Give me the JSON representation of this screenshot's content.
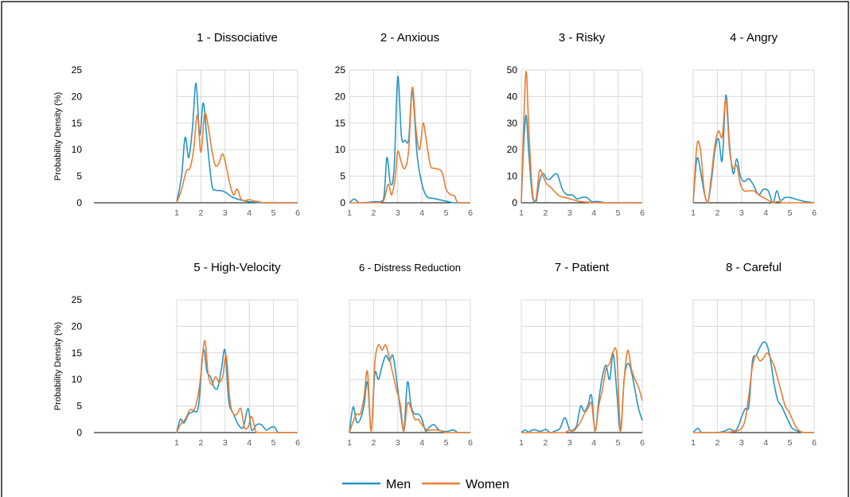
{
  "chart_data": {
    "type": "line",
    "x_ticks": [
      "1",
      "2",
      "3",
      "4",
      "5",
      "6"
    ],
    "xlim": [
      1,
      6
    ],
    "ylabel": "Probability Density (%)",
    "legend": {
      "placement": "bottom-center",
      "entries": [
        {
          "name": "Men",
          "color": "#2596c6"
        },
        {
          "name": "Women",
          "color": "#ed7d31"
        }
      ]
    },
    "rows": [
      {
        "ylim": [
          0,
          25
        ],
        "y_ticks": [
          "0",
          "5",
          "10",
          "15",
          "20",
          "25"
        ],
        "show_ylabel": true
      },
      {
        "ylim": [
          0,
          25
        ],
        "y_ticks": [
          "0",
          "5",
          "10",
          "15",
          "20",
          "25"
        ],
        "show_ylabel": true
      }
    ],
    "panels": [
      {
        "title": "1 - Dissociative",
        "ylim": [
          0,
          25
        ],
        "y_ticks": [
          "0",
          "5",
          "10",
          "15",
          "20",
          "25"
        ],
        "series": [
          {
            "name": "Men",
            "x": [
              1,
              1.2,
              1.35,
              1.5,
              1.65,
              1.8,
              1.95,
              2.1,
              2.25,
              2.45,
              2.6,
              2.8,
              3,
              3.25,
              3.5,
              3.75,
              4,
              4.25,
              4.5,
              5,
              6
            ],
            "y": [
              0,
              5,
              12.3,
              8.5,
              14,
              22.5,
              12.8,
              18.8,
              12,
              3.5,
              2.4,
              2.3,
              2,
              1.2,
              0.7,
              0.4,
              0.2,
              0.1,
              0,
              0,
              0
            ]
          },
          {
            "name": "Women",
            "x": [
              1,
              1.2,
              1.4,
              1.55,
              1.7,
              1.85,
              2,
              2.15,
              2.3,
              2.45,
              2.6,
              2.75,
              2.9,
              3.05,
              3.2,
              3.35,
              3.5,
              3.65,
              3.8,
              4,
              4.2,
              4.4,
              4.6,
              5,
              6
            ],
            "y": [
              0,
              2.5,
              6,
              6.5,
              10,
              16.5,
              9.5,
              16.7,
              14.5,
              10,
              7,
              7.5,
              9.2,
              6.8,
              3.5,
              1.5,
              2.6,
              0.8,
              0.4,
              0.6,
              0.3,
              0.2,
              0,
              0,
              0
            ]
          }
        ]
      },
      {
        "title": "2 - Anxious",
        "ylim": [
          0,
          25
        ],
        "y_ticks": [
          "0",
          "5",
          "10",
          "15",
          "20",
          "25"
        ],
        "series": [
          {
            "name": "Men",
            "x": [
              1,
              1.2,
              1.4,
              1.6,
              2,
              2.4,
              2.55,
              2.7,
              2.85,
              3,
              3.15,
              3.3,
              3.45,
              3.6,
              3.8,
              4,
              4.2,
              4.5,
              5,
              5.3,
              5.5,
              6
            ],
            "y": [
              0,
              0.7,
              0,
              0,
              0.2,
              0.5,
              8.5,
              3.5,
              6.5,
              23.7,
              12.5,
              11.8,
              12,
              21.2,
              9,
              3.5,
              1.2,
              0.8,
              0.3,
              0,
              0,
              0
            ]
          },
          {
            "name": "Women",
            "x": [
              1,
              2,
              2.4,
              2.6,
              2.75,
              2.9,
              3,
              3.15,
              3.3,
              3.45,
              3.6,
              3.75,
              3.9,
              4.05,
              4.2,
              4.35,
              4.5,
              4.7,
              4.85,
              5,
              5.2,
              5.35,
              5.5,
              6
            ],
            "y": [
              0,
              0,
              0.3,
              3.5,
              1.5,
              5,
              9.7,
              7.5,
              6.5,
              10,
              21.7,
              14,
              10,
              15,
              11,
              7,
              6.5,
              6.3,
              5.5,
              2.5,
              1.5,
              1.3,
              0,
              0
            ]
          }
        ]
      },
      {
        "title": "3 - Risky",
        "ylim": [
          0,
          50
        ],
        "y_ticks": [
          "0",
          "10",
          "20",
          "30",
          "40",
          "50"
        ],
        "series": [
          {
            "name": "Men",
            "x": [
              1,
              1.1,
              1.2,
              1.3,
              1.45,
              1.6,
              1.75,
              1.9,
              2.05,
              2.2,
              2.35,
              2.5,
              2.7,
              2.9,
              3.1,
              3.3,
              3.5,
              3.7,
              3.9,
              4.1,
              4.3,
              4.5,
              5,
              6
            ],
            "y": [
              0,
              22,
              33,
              20,
              3,
              0,
              8,
              11,
              9,
              9,
              10.5,
              10.5,
              5,
              3,
              3,
              1.5,
              2,
              2,
              0.5,
              0.5,
              0.3,
              0,
              0,
              0
            ]
          },
          {
            "name": "Women",
            "x": [
              1,
              1.1,
              1.2,
              1.3,
              1.45,
              1.6,
              1.75,
              1.9,
              2.05,
              2.2,
              2.4,
              2.6,
              2.8,
              3,
              3.2,
              3.4,
              3.6,
              3.8,
              4,
              5,
              6
            ],
            "y": [
              0,
              30,
              49.5,
              30,
              5,
              1,
              12,
              10,
              7,
              6,
              4,
              2.5,
              2,
              1.5,
              1,
              0.5,
              0.3,
              0.2,
              0,
              0,
              0
            ]
          }
        ]
      },
      {
        "title": "4 - Angry",
        "ylim": [
          0,
          50
        ],
        "y_ticks": [],
        "series": [
          {
            "name": "Men",
            "x": [
              1,
              1.15,
              1.3,
              1.45,
              1.6,
              1.75,
              1.9,
              2.05,
              2.2,
              2.35,
              2.5,
              2.65,
              2.8,
              2.95,
              3.1,
              3.3,
              3.5,
              3.7,
              3.9,
              4.1,
              4.3,
              4.45,
              4.6,
              4.8,
              5,
              5.3,
              5.6,
              6
            ],
            "y": [
              0,
              16.5,
              12,
              4,
              0,
              8,
              20,
              24,
              16,
              40.5,
              22,
              11,
              16.5,
              10,
              8,
              9,
              6.5,
              3,
              5,
              4.5,
              0,
              4.5,
              1,
              2,
              2,
              1.2,
              0.5,
              0
            ]
          },
          {
            "name": "Women",
            "x": [
              1,
              1.15,
              1.3,
              1.45,
              1.6,
              1.75,
              1.9,
              2.05,
              2.2,
              2.35,
              2.5,
              2.65,
              2.8,
              2.95,
              3.1,
              3.3,
              3.5,
              3.7,
              3.9,
              4.1,
              4.3,
              4.5,
              4.7,
              4.9,
              5.2,
              6
            ],
            "y": [
              0,
              21.5,
              20,
              5,
              0,
              10,
              22,
              27,
              25,
              39,
              20,
              13,
              14,
              7,
              4.5,
              4.5,
              4.5,
              3,
              2,
              1,
              0,
              0.5,
              0,
              0,
              0,
              0
            ]
          }
        ]
      },
      {
        "title": "5 - High-Velocity",
        "ylim": [
          0,
          25
        ],
        "y_ticks": [
          "0",
          "5",
          "10",
          "15",
          "20",
          "25"
        ],
        "series": [
          {
            "name": "Men",
            "x": [
              1,
              1.15,
              1.3,
              1.5,
              1.7,
              1.9,
              2.1,
              2.25,
              2.4,
              2.55,
              2.7,
              2.85,
              3,
              3.15,
              3.35,
              3.55,
              3.75,
              3.95,
              4.1,
              4.3,
              4.5,
              4.7,
              4.9,
              5.05,
              5.2,
              5.5,
              6
            ],
            "y": [
              0,
              2.5,
              1.8,
              3.5,
              4,
              5,
              15.5,
              11.5,
              10.5,
              8.5,
              8.5,
              12,
              15.5,
              6,
              3.5,
              1.5,
              1,
              4.5,
              0.5,
              1.5,
              1.5,
              0.5,
              1,
              1,
              0,
              0,
              0
            ]
          },
          {
            "name": "Women",
            "x": [
              1,
              1.15,
              1.35,
              1.55,
              1.75,
              1.95,
              2.15,
              2.3,
              2.45,
              2.6,
              2.75,
              2.9,
              3.05,
              3.2,
              3.35,
              3.5,
              3.65,
              3.8,
              3.95,
              4.1,
              4.3,
              4.6,
              6
            ],
            "y": [
              0,
              1.5,
              2.5,
              4.3,
              4.5,
              9,
              17.3,
              11,
              9,
              10.5,
              9.5,
              10.5,
              14.5,
              6,
              3.5,
              3.5,
              4.5,
              1,
              1,
              3,
              0,
              0,
              0
            ]
          }
        ]
      },
      {
        "title": "6 - Distress Reduction",
        "ylim": [
          0,
          25
        ],
        "y_ticks": [],
        "series": [
          {
            "name": "Men",
            "x": [
              1,
              1.15,
              1.3,
              1.45,
              1.6,
              1.75,
              1.9,
              2.05,
              2.2,
              2.35,
              2.5,
              2.65,
              2.8,
              2.95,
              3.1,
              3.25,
              3.4,
              3.55,
              3.7,
              3.85,
              4,
              4.15,
              4.3,
              4.5,
              4.7,
              5,
              5.3,
              5.5,
              6
            ],
            "y": [
              0,
              4.8,
              2,
              2.5,
              5,
              9.5,
              0.3,
              11,
              10,
              12.5,
              14.5,
              13.5,
              14.5,
              10,
              4.5,
              0.3,
              9.5,
              5,
              3.5,
              3.5,
              2.5,
              0.3,
              1,
              1.5,
              0.5,
              0.2,
              0.5,
              0,
              0
            ]
          },
          {
            "name": "Women",
            "x": [
              1,
              1.15,
              1.3,
              1.45,
              1.6,
              1.75,
              1.9,
              2.05,
              2.2,
              2.35,
              2.5,
              2.65,
              2.8,
              2.95,
              3.1,
              3.25,
              3.4,
              3.55,
              3.7,
              3.85,
              4,
              4.2,
              4.4,
              4.6,
              4.8,
              5,
              5.5,
              6
            ],
            "y": [
              0,
              2,
              3.5,
              3.5,
              6.5,
              11.5,
              0.3,
              13,
              16.5,
              15.5,
              16.5,
              14,
              11,
              8,
              5.5,
              0.3,
              5.5,
              4.5,
              2.5,
              2.5,
              1.5,
              0.5,
              0.5,
              0.5,
              0.3,
              0,
              0,
              0
            ]
          }
        ]
      },
      {
        "title": "7 - Patient",
        "ylim": [
          0,
          25
        ],
        "y_ticks": [],
        "series": [
          {
            "name": "Men",
            "x": [
              1,
              1.15,
              1.3,
              1.45,
              1.6,
              1.8,
              2,
              2.2,
              2.4,
              2.6,
              2.8,
              3,
              3.15,
              3.3,
              3.45,
              3.6,
              3.75,
              3.9,
              4.05,
              4.2,
              4.35,
              4.5,
              4.65,
              4.8,
              4.95,
              5.1,
              5.25,
              5.4,
              5.55,
              5.7,
              5.85,
              6
            ],
            "y": [
              0,
              0.5,
              0.1,
              0.5,
              0.5,
              0.2,
              0.6,
              0,
              0.3,
              0.8,
              2.8,
              0.5,
              0.5,
              1.5,
              5,
              4,
              5,
              7,
              0.3,
              6,
              10.5,
              12.7,
              10,
              14.8,
              7.5,
              0.3,
              10,
              13,
              11.5,
              8,
              4.5,
              2.3
            ]
          },
          {
            "name": "Women",
            "x": [
              1,
              2.5,
              2.8,
              3,
              3.15,
              3.3,
              3.45,
              3.6,
              3.75,
              3.9,
              4.05,
              4.2,
              4.35,
              4.5,
              4.65,
              4.8,
              4.95,
              5.1,
              5.25,
              5.4,
              5.55,
              5.7,
              5.85,
              6
            ],
            "y": [
              0,
              0,
              0,
              0.5,
              0.3,
              1,
              2,
              3.5,
              4.5,
              5.5,
              0.3,
              5,
              8,
              12,
              13,
              15.3,
              14.5,
              0.3,
              10,
              15.5,
              12,
              10,
              8.5,
              6
            ]
          }
        ]
      },
      {
        "title": "8 - Careful",
        "ylim": [
          0,
          25
        ],
        "y_ticks": [],
        "series": [
          {
            "name": "Men",
            "x": [
              1,
              1.1,
              1.2,
              1.35,
              1.5,
              2,
              2.3,
              2.5,
              2.7,
              2.85,
              3,
              3.15,
              3.3,
              3.45,
              3.6,
              3.75,
              3.9,
              4.05,
              4.2,
              4.35,
              4.5,
              4.65,
              4.8,
              4.95,
              5.1,
              5.3,
              5.6,
              6
            ],
            "y": [
              0,
              0.5,
              0.8,
              0,
              0,
              0,
              0.3,
              0.7,
              0.3,
              1,
              3,
              4.5,
              5,
              13.5,
              14.5,
              16,
              17,
              16.5,
              13.5,
              9,
              6,
              5,
              3.5,
              2,
              0.8,
              0.3,
              0,
              0
            ]
          },
          {
            "name": "Women",
            "x": [
              1,
              2,
              2.5,
              2.8,
              3,
              3.15,
              3.3,
              3.45,
              3.6,
              3.75,
              3.9,
              4.05,
              4.2,
              4.35,
              4.5,
              4.65,
              4.8,
              4.95,
              5.1,
              5.25,
              5.4,
              5.6,
              6
            ],
            "y": [
              0,
              0,
              0.1,
              0.3,
              0.8,
              2.5,
              7,
              12.5,
              14.5,
              13.5,
              14,
              15,
              14,
              12.5,
              10,
              7.5,
              5,
              4,
              2.5,
              1,
              0.3,
              0,
              0
            ]
          }
        ]
      }
    ]
  }
}
